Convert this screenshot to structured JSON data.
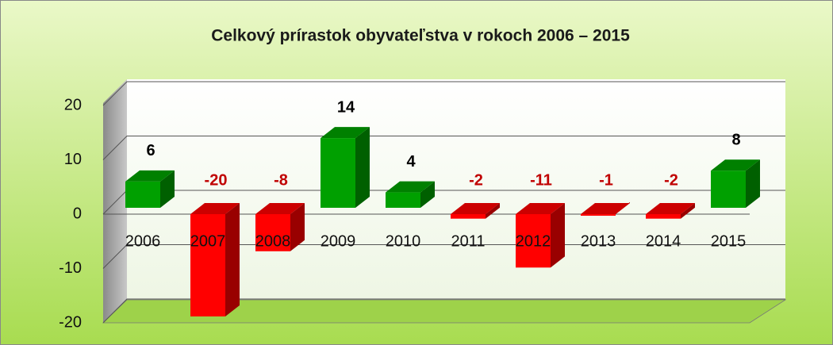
{
  "chart_data": {
    "type": "bar3d",
    "title": "Celkový prírastok obyvateľstva v rokoch 2006 – 2015",
    "categories": [
      "2006",
      "2007",
      "2008",
      "2009",
      "2010",
      "2011",
      "2012",
      "2013",
      "2014",
      "2015"
    ],
    "values": [
      6,
      -20,
      -8,
      14,
      4,
      -2,
      -11,
      -1,
      -2,
      8
    ],
    "positive_color": "#00a000",
    "negative_color": "#ff0000",
    "positive_label_color": "#000000",
    "negative_label_color": "#c00000",
    "ylim": [
      -20,
      20
    ],
    "yticks": [
      -20,
      -10,
      0,
      10,
      20
    ],
    "grid": true
  }
}
